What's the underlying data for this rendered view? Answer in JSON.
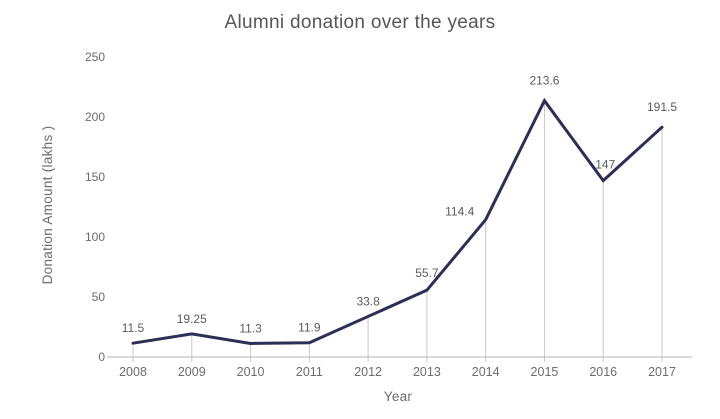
{
  "chart_data": {
    "type": "line",
    "title": "Alumni donation over the years",
    "xlabel": "Year",
    "ylabel": "Donation Amount (lakhs )",
    "categories": [
      "2008",
      "2009",
      "2010",
      "2011",
      "2012",
      "2013",
      "2014",
      "2015",
      "2016",
      "2017"
    ],
    "values": [
      11.5,
      19.25,
      11.3,
      11.9,
      33.8,
      55.7,
      114.4,
      213.6,
      147,
      191.5
    ],
    "data_labels": [
      "11.5",
      "19.25",
      "11.3",
      "11.9",
      "33.8",
      "55.7",
      "114.4",
      "213.6",
      "147",
      "191.5"
    ],
    "yticks": [
      0,
      50,
      100,
      150,
      200,
      250
    ],
    "ylim": [
      0,
      250
    ],
    "grid": "vertical-drop-lines-only",
    "legend": "none",
    "label_dx": [
      0,
      0,
      0,
      0,
      0,
      0,
      -26,
      0,
      2,
      0
    ],
    "label_dy": [
      0,
      0,
      0,
      0,
      0,
      -2,
      7,
      -5,
      -1,
      -5
    ],
    "colors": {
      "line": "#2b2f55",
      "data_label": "#595a5e",
      "tick_label": "#6b6c70",
      "axis_line": "#b3b3b3",
      "drop_line": "#c9c9c9",
      "title": "#55565a",
      "background": "#ffffff"
    }
  }
}
